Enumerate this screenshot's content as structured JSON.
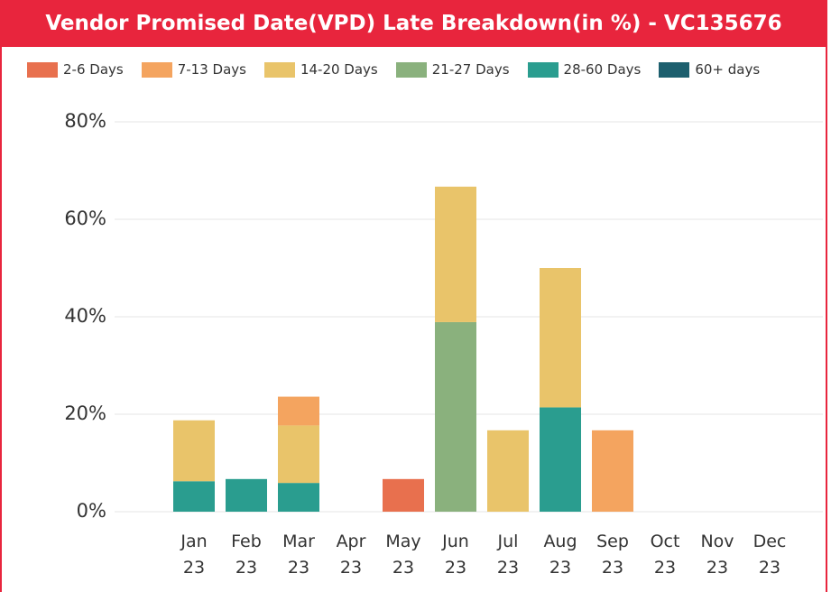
{
  "chart_data": {
    "type": "stacked_bar",
    "title": "Vendor Promised Date(VPD) Late Breakdown(in %) - VC135676",
    "categories": [
      "Jan 23",
      "Feb 23",
      "Mar 23",
      "Apr 23",
      "May 23",
      "Jun 23",
      "Jul 23",
      "Aug 23",
      "Sep 23",
      "Oct 23",
      "Nov 23",
      "Dec 23"
    ],
    "series": [
      {
        "name": "2-6 Days",
        "color": "#e8704e",
        "values": [
          null,
          null,
          null,
          null,
          6.7,
          null,
          null,
          null,
          null,
          null,
          null,
          null
        ]
      },
      {
        "name": "7-13 Days",
        "color": "#f4a45f",
        "values": [
          null,
          null,
          5.9,
          null,
          null,
          null,
          null,
          null,
          16.7,
          null,
          null,
          null
        ]
      },
      {
        "name": "14-20 Days",
        "color": "#e9c46a",
        "values": [
          12.5,
          null,
          11.8,
          null,
          null,
          27.8,
          16.7,
          28.6,
          null,
          null,
          null,
          null
        ]
      },
      {
        "name": "21-27 Days",
        "color": "#8ab17d",
        "values": [
          null,
          null,
          null,
          null,
          null,
          38.9,
          null,
          null,
          null,
          null,
          null,
          null
        ]
      },
      {
        "name": "28-60 Days",
        "color": "#2a9d8f",
        "values": [
          6.25,
          6.7,
          5.9,
          null,
          null,
          null,
          null,
          21.4,
          null,
          null,
          null,
          null
        ]
      },
      {
        "name": "60+ days",
        "color": "#1d5f6e",
        "values": [
          null,
          null,
          null,
          null,
          null,
          null,
          null,
          null,
          null,
          null,
          null,
          null
        ]
      }
    ],
    "stack_order": [
      4,
      3,
      2,
      1,
      0,
      5
    ],
    "ylim": [
      0,
      80
    ],
    "yticks": [
      {
        "value": 0,
        "label": "0%"
      },
      {
        "value": 20,
        "label": "20%"
      },
      {
        "value": 40,
        "label": "40%"
      },
      {
        "value": 60,
        "label": "60%"
      },
      {
        "value": 80,
        "label": "80%"
      }
    ],
    "grid": true,
    "legend": "top"
  }
}
